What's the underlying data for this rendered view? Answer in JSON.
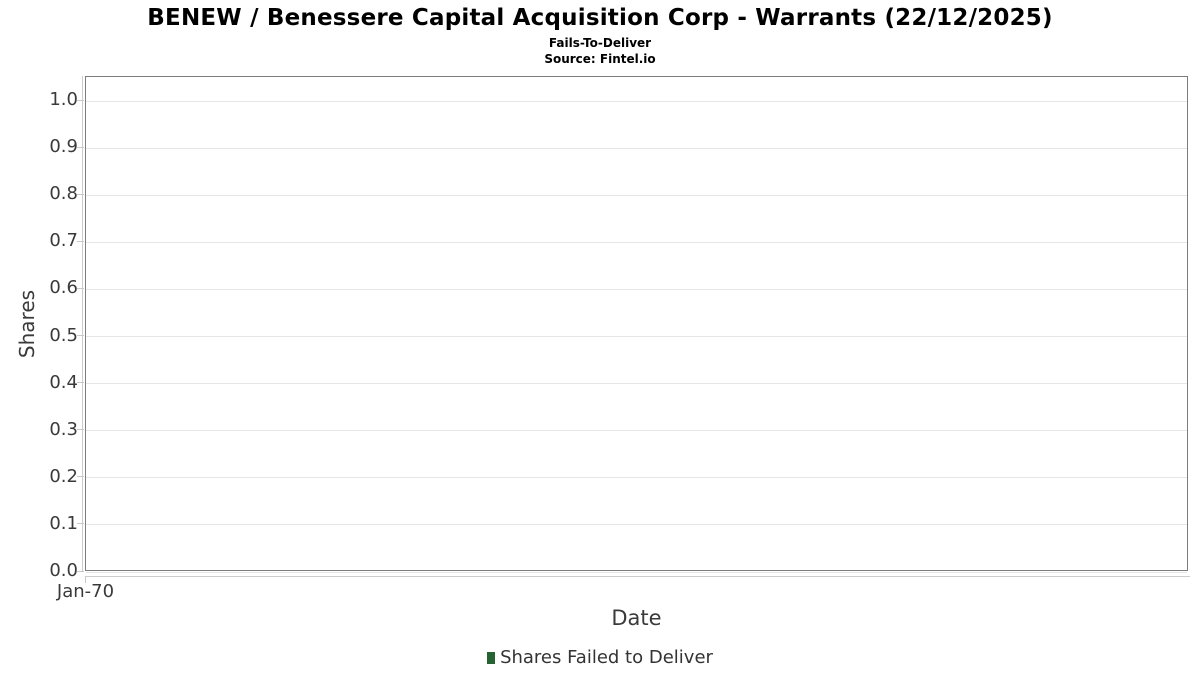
{
  "header": {
    "title": "BENEW / Benessere Capital Acquisition Corp - Warrants (22/12/2025)",
    "subtitle": "Fails-To-Deliver",
    "source": "Source: Fintel.io"
  },
  "axes": {
    "xlabel": "Date",
    "ylabel": "Shares",
    "x_tick": "Jan-70"
  },
  "legend": {
    "items": [
      {
        "label": "Shares Failed to Deliver",
        "color": "#266333"
      }
    ]
  },
  "colors": {
    "plot_border": "#7d7d7d",
    "gridline": "#e6e6e6",
    "axis_line": "#cccccc",
    "tick_text": "#3a3a3a",
    "title_text": "#000000",
    "series_green": "#266333"
  },
  "chart_data": {
    "type": "bar",
    "title": "BENEW / Benessere Capital Acquisition Corp - Warrants (22/12/2025)",
    "subtitle": "Fails-To-Deliver",
    "source": "Source: Fintel.io",
    "xlabel": "Date",
    "ylabel": "Shares",
    "categories": [
      "Jan-70"
    ],
    "series": [
      {
        "name": "Shares Failed to Deliver",
        "color": "#266333",
        "values": []
      }
    ],
    "x_tick_labels": [
      "Jan-70"
    ],
    "y_ticks": [
      "1.0",
      "0.9",
      "0.8",
      "0.7",
      "0.6",
      "0.5",
      "0.4",
      "0.3",
      "0.2",
      "0.1",
      "0.0"
    ],
    "ylim": [
      0.0,
      1.0
    ],
    "grid": true,
    "gridlines": "horizontal",
    "legend_position": "bottom",
    "plot_is_empty": true
  }
}
